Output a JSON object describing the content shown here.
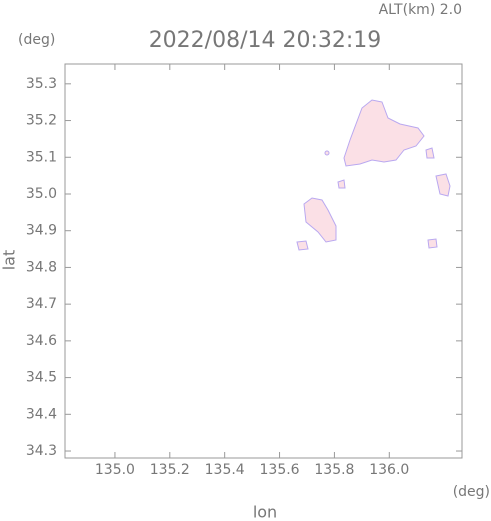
{
  "chart_data": {
    "type": "map",
    "title": "2022/08/14 20:32:19",
    "subtitle": "ALT(km) 2.0",
    "y_unit": "(deg)",
    "x_unit": "(deg)",
    "xlabel": "lon",
    "ylabel": "lat",
    "xlim": [
      134.818,
      136.265
    ],
    "ylim": [
      34.281,
      35.354
    ],
    "xticks": [
      {
        "value": 135.0,
        "label": "135.0"
      },
      135.2,
      135.4,
      135.6,
      135.8,
      {
        "value": 136.0,
        "label": "136.0"
      }
    ],
    "yticks": [
      34.3,
      34.4,
      34.5,
      34.6,
      34.7,
      34.8,
      34.9,
      {
        "value": 35.0,
        "label": "35.0"
      },
      35.1,
      35.2,
      35.3
    ]
  }
}
